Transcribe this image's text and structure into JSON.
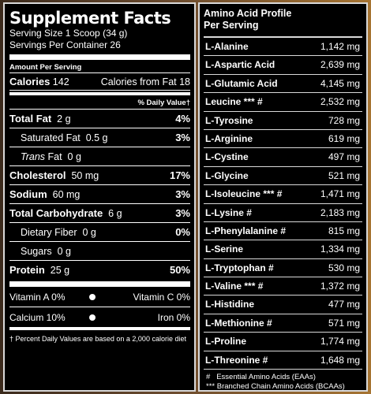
{
  "supplement_facts": {
    "title": "Supplement Facts",
    "serving_size": "Serving Size 1 Scoop (34 g)",
    "servings_per_container": "Servings Per Container 26",
    "amount_per_serving": "Amount Per Serving",
    "calories_label": "Calories",
    "calories_value": "142",
    "calories_from_fat": "Calories from Fat 18",
    "daily_value_header": "% Daily Value†",
    "nutrients": [
      {
        "name": "Total Fat",
        "amount": "2 g",
        "dv": "4%",
        "bold": true,
        "indent": false
      },
      {
        "name": "Saturated Fat",
        "amount": "0.5 g",
        "dv": "3%",
        "bold": false,
        "indent": true
      },
      {
        "name": "Trans",
        "name_suffix": " Fat",
        "amount": "0 g",
        "dv": "",
        "bold": false,
        "indent": true
      },
      {
        "name": "Cholesterol",
        "amount": "50 mg",
        "dv": "17%",
        "bold": true,
        "indent": false
      },
      {
        "name": "Sodium",
        "amount": "60 mg",
        "dv": "3%",
        "bold": true,
        "indent": false
      },
      {
        "name": "Total Carbohydrate",
        "amount": "6 g",
        "dv": "3%",
        "bold": true,
        "indent": false
      },
      {
        "name": "Dietary Fiber",
        "amount": "0 g",
        "dv": "0%",
        "bold": false,
        "indent": true
      },
      {
        "name": "Sugars",
        "amount": "0 g",
        "dv": "",
        "bold": false,
        "indent": true
      },
      {
        "name": "Protein",
        "amount": "25 g",
        "dv": "50%",
        "bold": true,
        "indent": false
      }
    ],
    "vitamins": [
      {
        "left": "Vitamin A 0%",
        "right": "Vitamin C 0%"
      },
      {
        "left": "Calcium 10%",
        "right": "Iron 0%"
      }
    ],
    "footnote": "† Percent Daily Values are based on a 2,000 calorie diet"
  },
  "amino_profile": {
    "title_line1": "Amino Acid Profile",
    "title_line2": "Per Serving",
    "items": [
      {
        "name": "L-Alanine",
        "value": "1,142 mg"
      },
      {
        "name": "L-Aspartic Acid",
        "value": "2,639 mg"
      },
      {
        "name": "L-Glutamic Acid",
        "value": "4,145 mg"
      },
      {
        "name": "Leucine *** #",
        "value": "2,532 mg"
      },
      {
        "name": "L-Tyrosine",
        "value": "728 mg"
      },
      {
        "name": "L-Arginine",
        "value": "619 mg"
      },
      {
        "name": "L-Cystine",
        "value": "497 mg"
      },
      {
        "name": "L-Glycine",
        "value": "521 mg"
      },
      {
        "name": "L-Isoleucine *** #",
        "value": "1,471 mg"
      },
      {
        "name": "L-Lysine #",
        "value": "2,183 mg"
      },
      {
        "name": "L-Phenylalanine #",
        "value": "815 mg"
      },
      {
        "name": "L-Serine",
        "value": "1,334 mg"
      },
      {
        "name": "L-Tryptophan #",
        "value": "530 mg"
      },
      {
        "name": "L-Valine *** #",
        "value": "1,372 mg"
      },
      {
        "name": "L-Histidine",
        "value": "477 mg"
      },
      {
        "name": "L-Methionine #",
        "value": "571 mg"
      },
      {
        "name": "L-Proline",
        "value": "1,774 mg"
      },
      {
        "name": "L-Threonine #",
        "value": "1,648 mg"
      }
    ],
    "legend": [
      "#   Essential Amino Acids (EAAs)",
      "*** Branched Chain Amino Acids (BCAAs)"
    ]
  }
}
